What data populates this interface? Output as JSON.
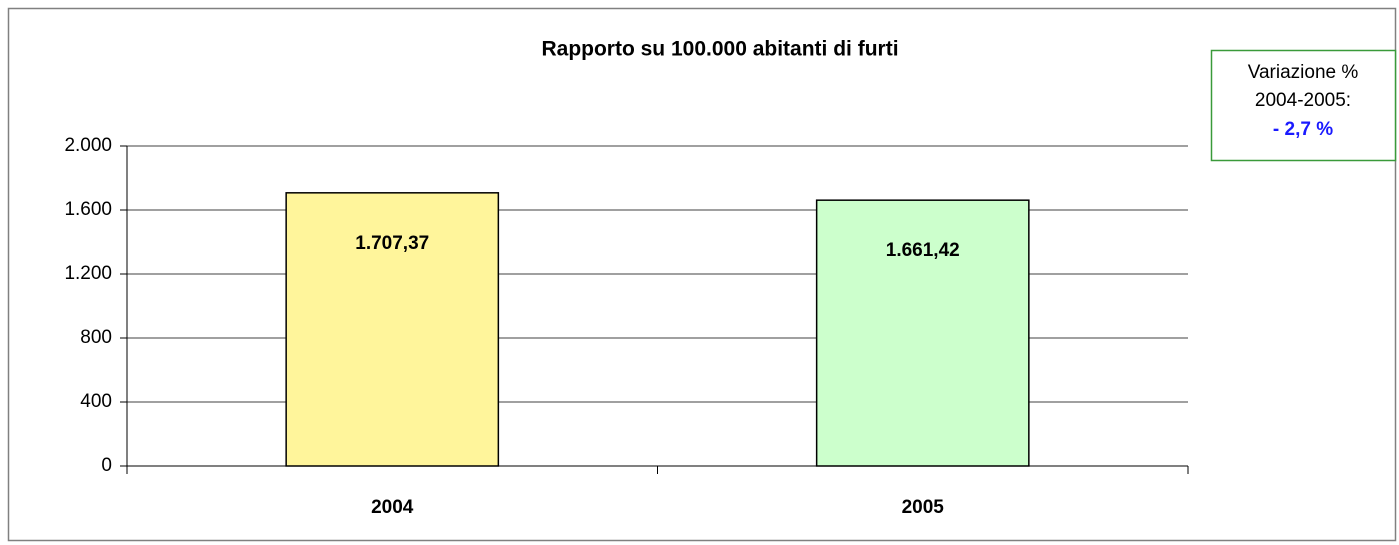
{
  "chart_data": {
    "type": "bar",
    "title": "Rapporto su 100.000 abitanti di furti",
    "categories": [
      "2004",
      "2005"
    ],
    "values": [
      1707.37,
      1661.42
    ],
    "value_labels": [
      "1.707,37",
      "1.661,42"
    ],
    "colors": [
      "#fff59b",
      "#ccffcc"
    ],
    "ylim": [
      0,
      2000
    ],
    "yticks": [
      0,
      400,
      800,
      {
        "value": 1200,
        "label": "1.200"
      },
      {
        "value": 1600,
        "label": "1.600"
      },
      {
        "value": 2000,
        "label": "2.000"
      }
    ],
    "grid": true,
    "annotation": [
      "Variazione %",
      "2004-2005:",
      "- 2,7 %"
    ]
  }
}
